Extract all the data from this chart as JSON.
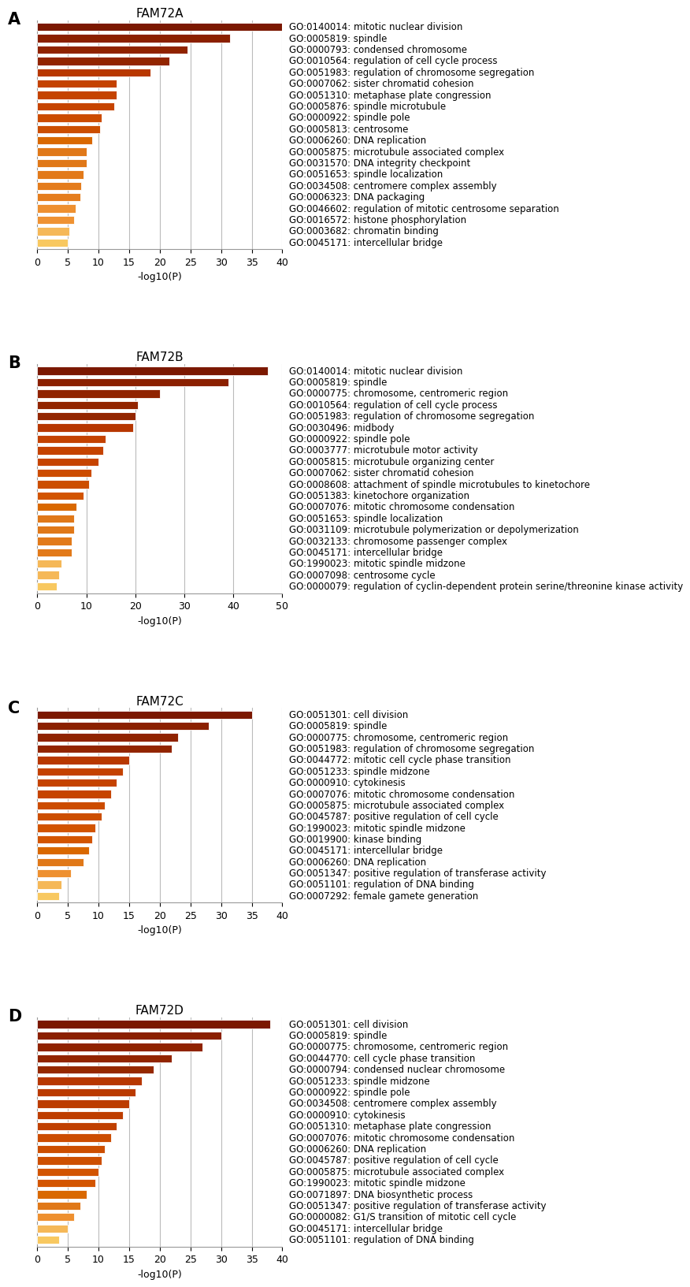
{
  "panels": [
    {
      "label": "A",
      "title": "FAM72A",
      "xlim": [
        0,
        40
      ],
      "xticks": [
        0,
        5,
        10,
        15,
        20,
        25,
        30,
        35,
        40
      ],
      "terms": [
        "GO:0140014: mitotic nuclear division",
        "GO:0005819: spindle",
        "GO:0000793: condensed chromosome",
        "GO:0010564: regulation of cell cycle process",
        "GO:0051983: regulation of chromosome segregation",
        "GO:0007062: sister chromatid cohesion",
        "GO:0051310: metaphase plate congression",
        "GO:0005876: spindle microtubule",
        "GO:0000922: spindle pole",
        "GO:0005813: centrosome",
        "GO:0006260: DNA replication",
        "GO:0005875: microtubule associated complex",
        "GO:0031570: DNA integrity checkpoint",
        "GO:0051653: spindle localization",
        "GO:0034508: centromere complex assembly",
        "GO:0006323: DNA packaging",
        "GO:0046602: regulation of mitotic centrosome separation",
        "GO:0016572: histone phosphorylation",
        "GO:0003682: chromatin binding",
        "GO:0045171: intercellular bridge"
      ],
      "values": [
        40,
        31.5,
        24.5,
        21.5,
        18.5,
        13.0,
        13.0,
        12.5,
        10.5,
        10.3,
        9.0,
        8.0,
        8.0,
        7.5,
        7.2,
        7.0,
        6.2,
        6.0,
        5.2,
        5.0
      ],
      "colors": [
        "#7B1800",
        "#8B2000",
        "#902300",
        "#922500",
        "#B83800",
        "#C44200",
        "#C54300",
        "#C64400",
        "#CC4C00",
        "#CC4E00",
        "#D96800",
        "#E07818",
        "#E07818",
        "#E27A1A",
        "#E47C1C",
        "#E57D1D",
        "#EE9030",
        "#EF9232",
        "#F5B858",
        "#F8C860"
      ]
    },
    {
      "label": "B",
      "title": "FAM72B",
      "xlim": [
        0,
        50
      ],
      "xticks": [
        0,
        10,
        20,
        30,
        40,
        50
      ],
      "terms": [
        "GO:0140014: mitotic nuclear division",
        "GO:0005819: spindle",
        "GO:0000775: chromosome, centromeric region",
        "GO:0010564: regulation of cell cycle process",
        "GO:0051983: regulation of chromosome segregation",
        "GO:0030496: midbody",
        "GO:0000922: spindle pole",
        "GO:0003777: microtubule motor activity",
        "GO:0005815: microtubule organizing center",
        "GO:0007062: sister chromatid cohesion",
        "GO:0008608: attachment of spindle microtubules to kinetochore",
        "GO:0051383: kinetochore organization",
        "GO:0007076: mitotic chromosome condensation",
        "GO:0051653: spindle localization",
        "GO:0031109: microtubule polymerization or depolymerization",
        "GO:0032133: chromosome passenger complex",
        "GO:0045171: intercellular bridge",
        "GO:1990023: mitotic spindle midzone",
        "GO:0007098: centrosome cycle",
        "GO:0000079: regulation of cyclin-dependent protein serine/threonine kinase activity"
      ],
      "values": [
        47,
        39,
        25,
        20.5,
        20,
        19.5,
        14,
        13.5,
        12.5,
        11,
        10.5,
        9.5,
        8.0,
        7.5,
        7.5,
        7.0,
        7.0,
        5.0,
        4.5,
        4.0
      ],
      "colors": [
        "#7B1800",
        "#8B2000",
        "#902300",
        "#922500",
        "#932600",
        "#B73700",
        "#C44200",
        "#C54300",
        "#C64400",
        "#CC4C00",
        "#CC4E00",
        "#D25400",
        "#D96800",
        "#E07818",
        "#E07818",
        "#E27A1A",
        "#E27A1A",
        "#F5B858",
        "#F5B858",
        "#F8C860"
      ]
    },
    {
      "label": "C",
      "title": "FAM72C",
      "xlim": [
        0,
        40
      ],
      "xticks": [
        0,
        5,
        10,
        15,
        20,
        25,
        30,
        35,
        40
      ],
      "terms": [
        "GO:0051301: cell division",
        "GO:0005819: spindle",
        "GO:0000775: chromosome, centromeric region",
        "GO:0051983: regulation of chromosome segregation",
        "GO:0044772: mitotic cell cycle phase transition",
        "GO:0051233: spindle midzone",
        "GO:0000910: cytokinesis",
        "GO:0007076: mitotic chromosome condensation",
        "GO:0005875: microtubule associated complex",
        "GO:0045787: positive regulation of cell cycle",
        "GO:1990023: mitotic spindle midzone",
        "GO:0019900: kinase binding",
        "GO:0045171: intercellular bridge",
        "GO:0006260: DNA replication",
        "GO:0051347: positive regulation of transferase activity",
        "GO:0051101: regulation of DNA binding",
        "GO:0007292: female gamete generation"
      ],
      "values": [
        35,
        28,
        23,
        22,
        15,
        14,
        13,
        12,
        11,
        10.5,
        9.5,
        9.0,
        8.5,
        7.5,
        5.5,
        4.0,
        3.5
      ],
      "colors": [
        "#7B1800",
        "#8B2000",
        "#902300",
        "#922500",
        "#B83800",
        "#C44200",
        "#C54300",
        "#C64400",
        "#CC4C00",
        "#CC4E00",
        "#D25400",
        "#D35500",
        "#D96800",
        "#E07818",
        "#EE9030",
        "#F5B858",
        "#F8C860"
      ]
    },
    {
      "label": "D",
      "title": "FAM72D",
      "xlim": [
        0,
        40
      ],
      "xticks": [
        0,
        5,
        10,
        15,
        20,
        25,
        30,
        35,
        40
      ],
      "terms": [
        "GO:0051301: cell division",
        "GO:0005819: spindle",
        "GO:0000775: chromosome, centromeric region",
        "GO:0044770: cell cycle phase transition",
        "GO:0000794: condensed nuclear chromosome",
        "GO:0051233: spindle midzone",
        "GO:0000922: spindle pole",
        "GO:0034508: centromere complex assembly",
        "GO:0000910: cytokinesis",
        "GO:0051310: metaphase plate congression",
        "GO:0007076: mitotic chromosome condensation",
        "GO:0006260: DNA replication",
        "GO:0045787: positive regulation of cell cycle",
        "GO:0005875: microtubule associated complex",
        "GO:1990023: mitotic spindle midzone",
        "GO:0071897: DNA biosynthetic process",
        "GO:0051347: positive regulation of transferase activity",
        "GO:0000082: G1/S transition of mitotic cell cycle",
        "GO:0045171: intercellular bridge",
        "GO:0051101: regulation of DNA binding"
      ],
      "values": [
        38,
        30,
        27,
        22,
        19,
        17,
        16,
        15,
        14,
        13,
        12,
        11,
        10.5,
        10,
        9.5,
        8.0,
        7.0,
        6.0,
        5.0,
        3.5
      ],
      "colors": [
        "#7B1800",
        "#8B2000",
        "#902300",
        "#922500",
        "#962900",
        "#B73700",
        "#BA3A00",
        "#BC3C00",
        "#BE3E00",
        "#C04000",
        "#CC4C00",
        "#CC4E00",
        "#CD4F00",
        "#D25400",
        "#D35500",
        "#D96800",
        "#E07818",
        "#EE9030",
        "#F5B858",
        "#F8C860"
      ]
    }
  ],
  "bar_height": 0.72,
  "grid_color": "#BBBBBB",
  "background_color": "#FFFFFF",
  "term_fontsize": 8.5,
  "title_fontsize": 11,
  "axis_label_fontsize": 9,
  "tick_fontsize": 9,
  "panel_label_fontsize": 15
}
